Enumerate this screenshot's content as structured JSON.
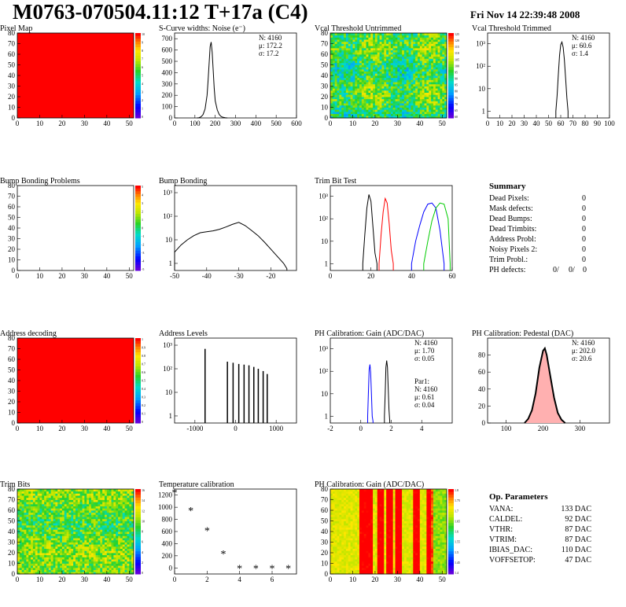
{
  "header": {
    "title": "M0763-070504.11:12 T+17a (C4)",
    "date": "Fri Nov 14 22:39:48 2008"
  },
  "colors": {
    "red": "#ff0000",
    "blue": "#0000ff",
    "green": "#00cc00",
    "black": "#000000"
  },
  "chart_data": [
    {
      "id": "pixel-map",
      "type": "heatmap",
      "title": "Pixel Map",
      "xlim": [
        0,
        52
      ],
      "ylim": [
        0,
        80
      ],
      "xticks": [
        0,
        10,
        20,
        30,
        40,
        50
      ],
      "yticks": [
        0,
        10,
        20,
        30,
        40,
        50,
        60,
        70,
        80
      ],
      "fill": "uniform",
      "zticks": [
        "10",
        "9",
        "8",
        "7",
        "6",
        "5",
        "4",
        "3",
        "2",
        "1",
        "0"
      ]
    },
    {
      "id": "scurve",
      "type": "line",
      "title": "S-Curve widths: Noise (e⁻)",
      "xlim": [
        0,
        600
      ],
      "ylim": [
        0,
        750
      ],
      "xticks": [
        0,
        100,
        200,
        300,
        400,
        500,
        600
      ],
      "yticks": [
        0,
        100,
        200,
        300,
        400,
        500,
        600,
        700
      ],
      "stats": [
        "N: 4160",
        "μ: 172.2",
        "σ: 17.2"
      ],
      "series": [
        {
          "x": [
            110,
            120,
            130,
            140,
            150,
            160,
            165,
            170,
            175,
            180,
            185,
            190,
            195,
            200,
            210,
            220,
            230,
            240,
            250,
            260
          ],
          "y": [
            0,
            2,
            10,
            30,
            80,
            200,
            330,
            480,
            630,
            670,
            580,
            420,
            260,
            150,
            70,
            30,
            12,
            5,
            2,
            0
          ]
        }
      ]
    },
    {
      "id": "vcal-untrimmed",
      "type": "heatmap",
      "title": "Vcal Threshold Untrimmed",
      "xlim": [
        0,
        52
      ],
      "ylim": [
        0,
        80
      ],
      "xticks": [
        0,
        10,
        20,
        30,
        40,
        50
      ],
      "yticks": [
        0,
        10,
        20,
        30,
        40,
        50,
        60,
        70,
        80
      ],
      "fill": "noise-cyan",
      "zticks": [
        "125",
        "120",
        "115",
        "110",
        "105",
        "100",
        "95",
        "90",
        "85",
        "80",
        "75",
        "70",
        "65",
        "60"
      ]
    },
    {
      "id": "vcal-trimmed",
      "type": "line",
      "title": "Vcal Threshold Trimmed",
      "xlim": [
        0,
        100
      ],
      "ylog": true,
      "ylim": [
        0.5,
        3000
      ],
      "xticks": [
        0,
        10,
        20,
        30,
        40,
        50,
        60,
        70,
        80,
        90,
        100
      ],
      "yticks_log": [
        "1",
        "10",
        "10²",
        "10³"
      ],
      "stats": [
        "N: 4160",
        "μ: 60.6",
        "σ: 1.4"
      ],
      "series": [
        {
          "x": [
            56,
            57,
            58,
            59,
            60,
            61,
            62,
            63,
            64,
            65,
            66
          ],
          "y": [
            1,
            5,
            40,
            300,
            900,
            1200,
            700,
            200,
            30,
            4,
            1
          ]
        }
      ]
    },
    {
      "id": "bump-problems",
      "type": "heatmap",
      "title": "Bump Bonding Problems",
      "xlim": [
        0,
        52
      ],
      "ylim": [
        0,
        80
      ],
      "xticks": [
        0,
        10,
        20,
        30,
        40,
        50
      ],
      "yticks": [
        0,
        10,
        20,
        30,
        40,
        50,
        60,
        70,
        80
      ],
      "fill": "empty",
      "zticks": [
        "5",
        "4",
        "3",
        "2",
        "1",
        "0",
        "-1",
        "-2",
        "-3",
        "-4",
        "-5"
      ]
    },
    {
      "id": "bump-bonding",
      "type": "line",
      "title": "Bump Bonding",
      "xlim": [
        -50,
        -12
      ],
      "ylog": true,
      "ylim": [
        0.5,
        2000
      ],
      "xticks": [
        -50,
        -40,
        -30,
        -20
      ],
      "yticks_log": [
        "1",
        "10",
        "10²",
        "10³"
      ],
      "series": [
        {
          "x": [
            -50,
            -48,
            -46,
            -44,
            -42,
            -40,
            -38,
            -36,
            -34,
            -32,
            -30,
            -28,
            -26,
            -24,
            -22,
            -20,
            -18,
            -16,
            -15
          ],
          "y": [
            3,
            6,
            10,
            15,
            20,
            22,
            24,
            28,
            35,
            45,
            55,
            40,
            25,
            15,
            8,
            4,
            2,
            1,
            0.6
          ]
        }
      ]
    },
    {
      "id": "trim-bit-test",
      "type": "line",
      "title": "Trim Bit Test",
      "xlim": [
        0,
        60
      ],
      "ylog": true,
      "ylim": [
        0.5,
        3000
      ],
      "xticks": [
        0,
        20,
        40,
        60
      ],
      "yticks_log": [
        "1",
        "10",
        "10²",
        "10³"
      ],
      "series": [
        {
          "name": "",
          "color": "#000000",
          "x": [
            16,
            17,
            18,
            19,
            20,
            21,
            22,
            23
          ],
          "y": [
            1,
            20,
            300,
            1200,
            600,
            40,
            3,
            1
          ]
        },
        {
          "name": "",
          "color": "#ff0000",
          "x": [
            24,
            25,
            26,
            27,
            28,
            29,
            30,
            31
          ],
          "y": [
            1,
            20,
            200,
            800,
            500,
            60,
            4,
            1
          ]
        },
        {
          "name": "",
          "color": "#0000ff",
          "x": [
            40,
            42,
            44,
            46,
            48,
            50,
            52,
            54,
            56
          ],
          "y": [
            1,
            10,
            50,
            200,
            450,
            500,
            300,
            30,
            1
          ]
        },
        {
          "name": "",
          "color": "#00cc00",
          "x": [
            46,
            48,
            50,
            52,
            54,
            56,
            58,
            59
          ],
          "y": [
            1,
            10,
            80,
            300,
            500,
            450,
            100,
            1
          ]
        }
      ]
    },
    {
      "id": "address-decoding",
      "type": "heatmap",
      "title": "Address decoding",
      "xlim": [
        0,
        52
      ],
      "ylim": [
        0,
        80
      ],
      "xticks": [
        0,
        10,
        20,
        30,
        40,
        50
      ],
      "yticks": [
        0,
        10,
        20,
        30,
        40,
        50,
        60,
        70,
        80
      ],
      "fill": "uniform",
      "zticks": [
        "1",
        "0.9",
        "0.8",
        "0.7",
        "0.6",
        "0.5",
        "0.4",
        "0.3",
        "0.2",
        "0.1",
        "0"
      ]
    },
    {
      "id": "address-levels",
      "type": "bar",
      "title": "Address Levels",
      "xlim": [
        -1500,
        1500
      ],
      "ylog": true,
      "ylim": [
        0.5,
        2000
      ],
      "xticks": [
        -1000,
        0,
        1000
      ],
      "yticks_log": [
        "1",
        "10",
        "10²",
        "10³"
      ],
      "x": [
        -750,
        -200,
        -60,
        80,
        210,
        330,
        450,
        560,
        680,
        780
      ],
      "values": [
        700,
        200,
        180,
        160,
        150,
        140,
        120,
        100,
        80,
        60
      ]
    },
    {
      "id": "ph-gain",
      "type": "line",
      "title": "PH Calibration: Gain (ADC/DAC)",
      "xlim": [
        -2,
        6
      ],
      "ylog": true,
      "ylim": [
        0.5,
        3000
      ],
      "xticks": [
        -2,
        0,
        2,
        4
      ],
      "yticks_log": [
        "1",
        "10",
        "10²",
        "10³"
      ],
      "stats": [
        "N: 4160",
        "μ: 1.70",
        "σ: 0.05"
      ],
      "stats2": [
        "Par1:",
        "N: 4160",
        "μ: 0.61",
        "σ: 0.04"
      ],
      "series": [
        {
          "name": "",
          "color": "#0000ff",
          "x": [
            0.45,
            0.5,
            0.55,
            0.6,
            0.65,
            0.7,
            0.75,
            0.8
          ],
          "y": [
            1,
            10,
            120,
            200,
            90,
            10,
            1,
            0.6
          ]
        },
        {
          "name": "",
          "color": "#000000",
          "x": [
            1.55,
            1.6,
            1.65,
            1.7,
            1.75,
            1.8,
            1.85,
            1.9
          ],
          "y": [
            1,
            10,
            150,
            300,
            150,
            20,
            2,
            0.6
          ]
        }
      ]
    },
    {
      "id": "ph-pedestal",
      "type": "line",
      "title": "PH Calibration: Pedestal (DAC)",
      "xlim": [
        50,
        380
      ],
      "ylim": [
        0,
        100
      ],
      "xticks": [
        100,
        200,
        300
      ],
      "yticks": [
        0,
        20,
        40,
        60,
        80
      ],
      "stats": [
        "N: 4160",
        "μ: 202.0",
        "σ: 20.6"
      ],
      "series": [
        {
          "x": [
            150,
            160,
            170,
            180,
            190,
            200,
            205,
            210,
            220,
            230,
            240,
            250,
            260
          ],
          "y": [
            0,
            5,
            15,
            35,
            65,
            85,
            88,
            80,
            55,
            30,
            12,
            4,
            0
          ]
        }
      ]
    },
    {
      "id": "trim-bits",
      "type": "heatmap",
      "title": "Trim Bits",
      "xlim": [
        0,
        52
      ],
      "ylim": [
        0,
        80
      ],
      "xticks": [
        0,
        10,
        20,
        30,
        40,
        50
      ],
      "yticks": [
        0,
        10,
        20,
        30,
        40,
        50,
        60,
        70,
        80
      ],
      "fill": "noise-green",
      "zticks": [
        "16",
        "14",
        "12",
        "10",
        "8",
        "6",
        "4",
        "2",
        "0"
      ]
    },
    {
      "id": "temperature",
      "type": "scatter",
      "title": "Temperature calibration",
      "xlim": [
        0,
        7.5
      ],
      "ylim": [
        -100,
        1300
      ],
      "xticks": [
        0,
        2,
        4,
        6
      ],
      "yticks": [
        0,
        200,
        400,
        600,
        800,
        1000,
        1200
      ],
      "series": [
        {
          "x": [
            0,
            1,
            2,
            3,
            4,
            5,
            6,
            7
          ],
          "y": [
            1250,
            950,
            620,
            240,
            0,
            0,
            0,
            0
          ]
        }
      ]
    },
    {
      "id": "ph-gain-map",
      "type": "heatmap",
      "title": "PH Calibration: Gain (ADC/DAC)",
      "xlim": [
        0,
        52
      ],
      "ylim": [
        0,
        80
      ],
      "xticks": [
        0,
        10,
        20,
        30,
        40,
        50
      ],
      "yticks": [
        0,
        10,
        20,
        30,
        40,
        50,
        60,
        70,
        80
      ],
      "fill": "stripes",
      "zticks": [
        "1.8",
        "1.75",
        "1.7",
        "1.65",
        "1.6",
        "1.55",
        "1.5",
        "1.45",
        "1.4"
      ]
    }
  ],
  "summary": {
    "title": "Summary",
    "rows": [
      {
        "label": "Dead Pixels:",
        "value": "0"
      },
      {
        "label": "Mask defects:",
        "value": "0"
      },
      {
        "label": "Dead Bumps:",
        "value": "0"
      },
      {
        "label": "Dead Trimbits:",
        "value": "0"
      },
      {
        "label": "Address Probl:",
        "value": "0"
      },
      {
        "label": "Noisy Pixels 2:",
        "value": "0"
      },
      {
        "label": "Trim Probl.:",
        "value": "0"
      }
    ],
    "ph_label": "PH defects:",
    "ph_vals": [
      "0/",
      "0/",
      "0"
    ]
  },
  "params": {
    "title": "Op. Parameters",
    "rows": [
      {
        "label": "VANA:",
        "value": "133 DAC"
      },
      {
        "label": "CALDEL:",
        "value": "92 DAC"
      },
      {
        "label": "VTHR:",
        "value": "87 DAC"
      },
      {
        "label": "VTRIM:",
        "value": "87 DAC"
      },
      {
        "label": "IBIAS_DAC:",
        "value": "110 DAC"
      },
      {
        "label": "VOFFSETOP:",
        "value": "47 DAC"
      }
    ]
  }
}
